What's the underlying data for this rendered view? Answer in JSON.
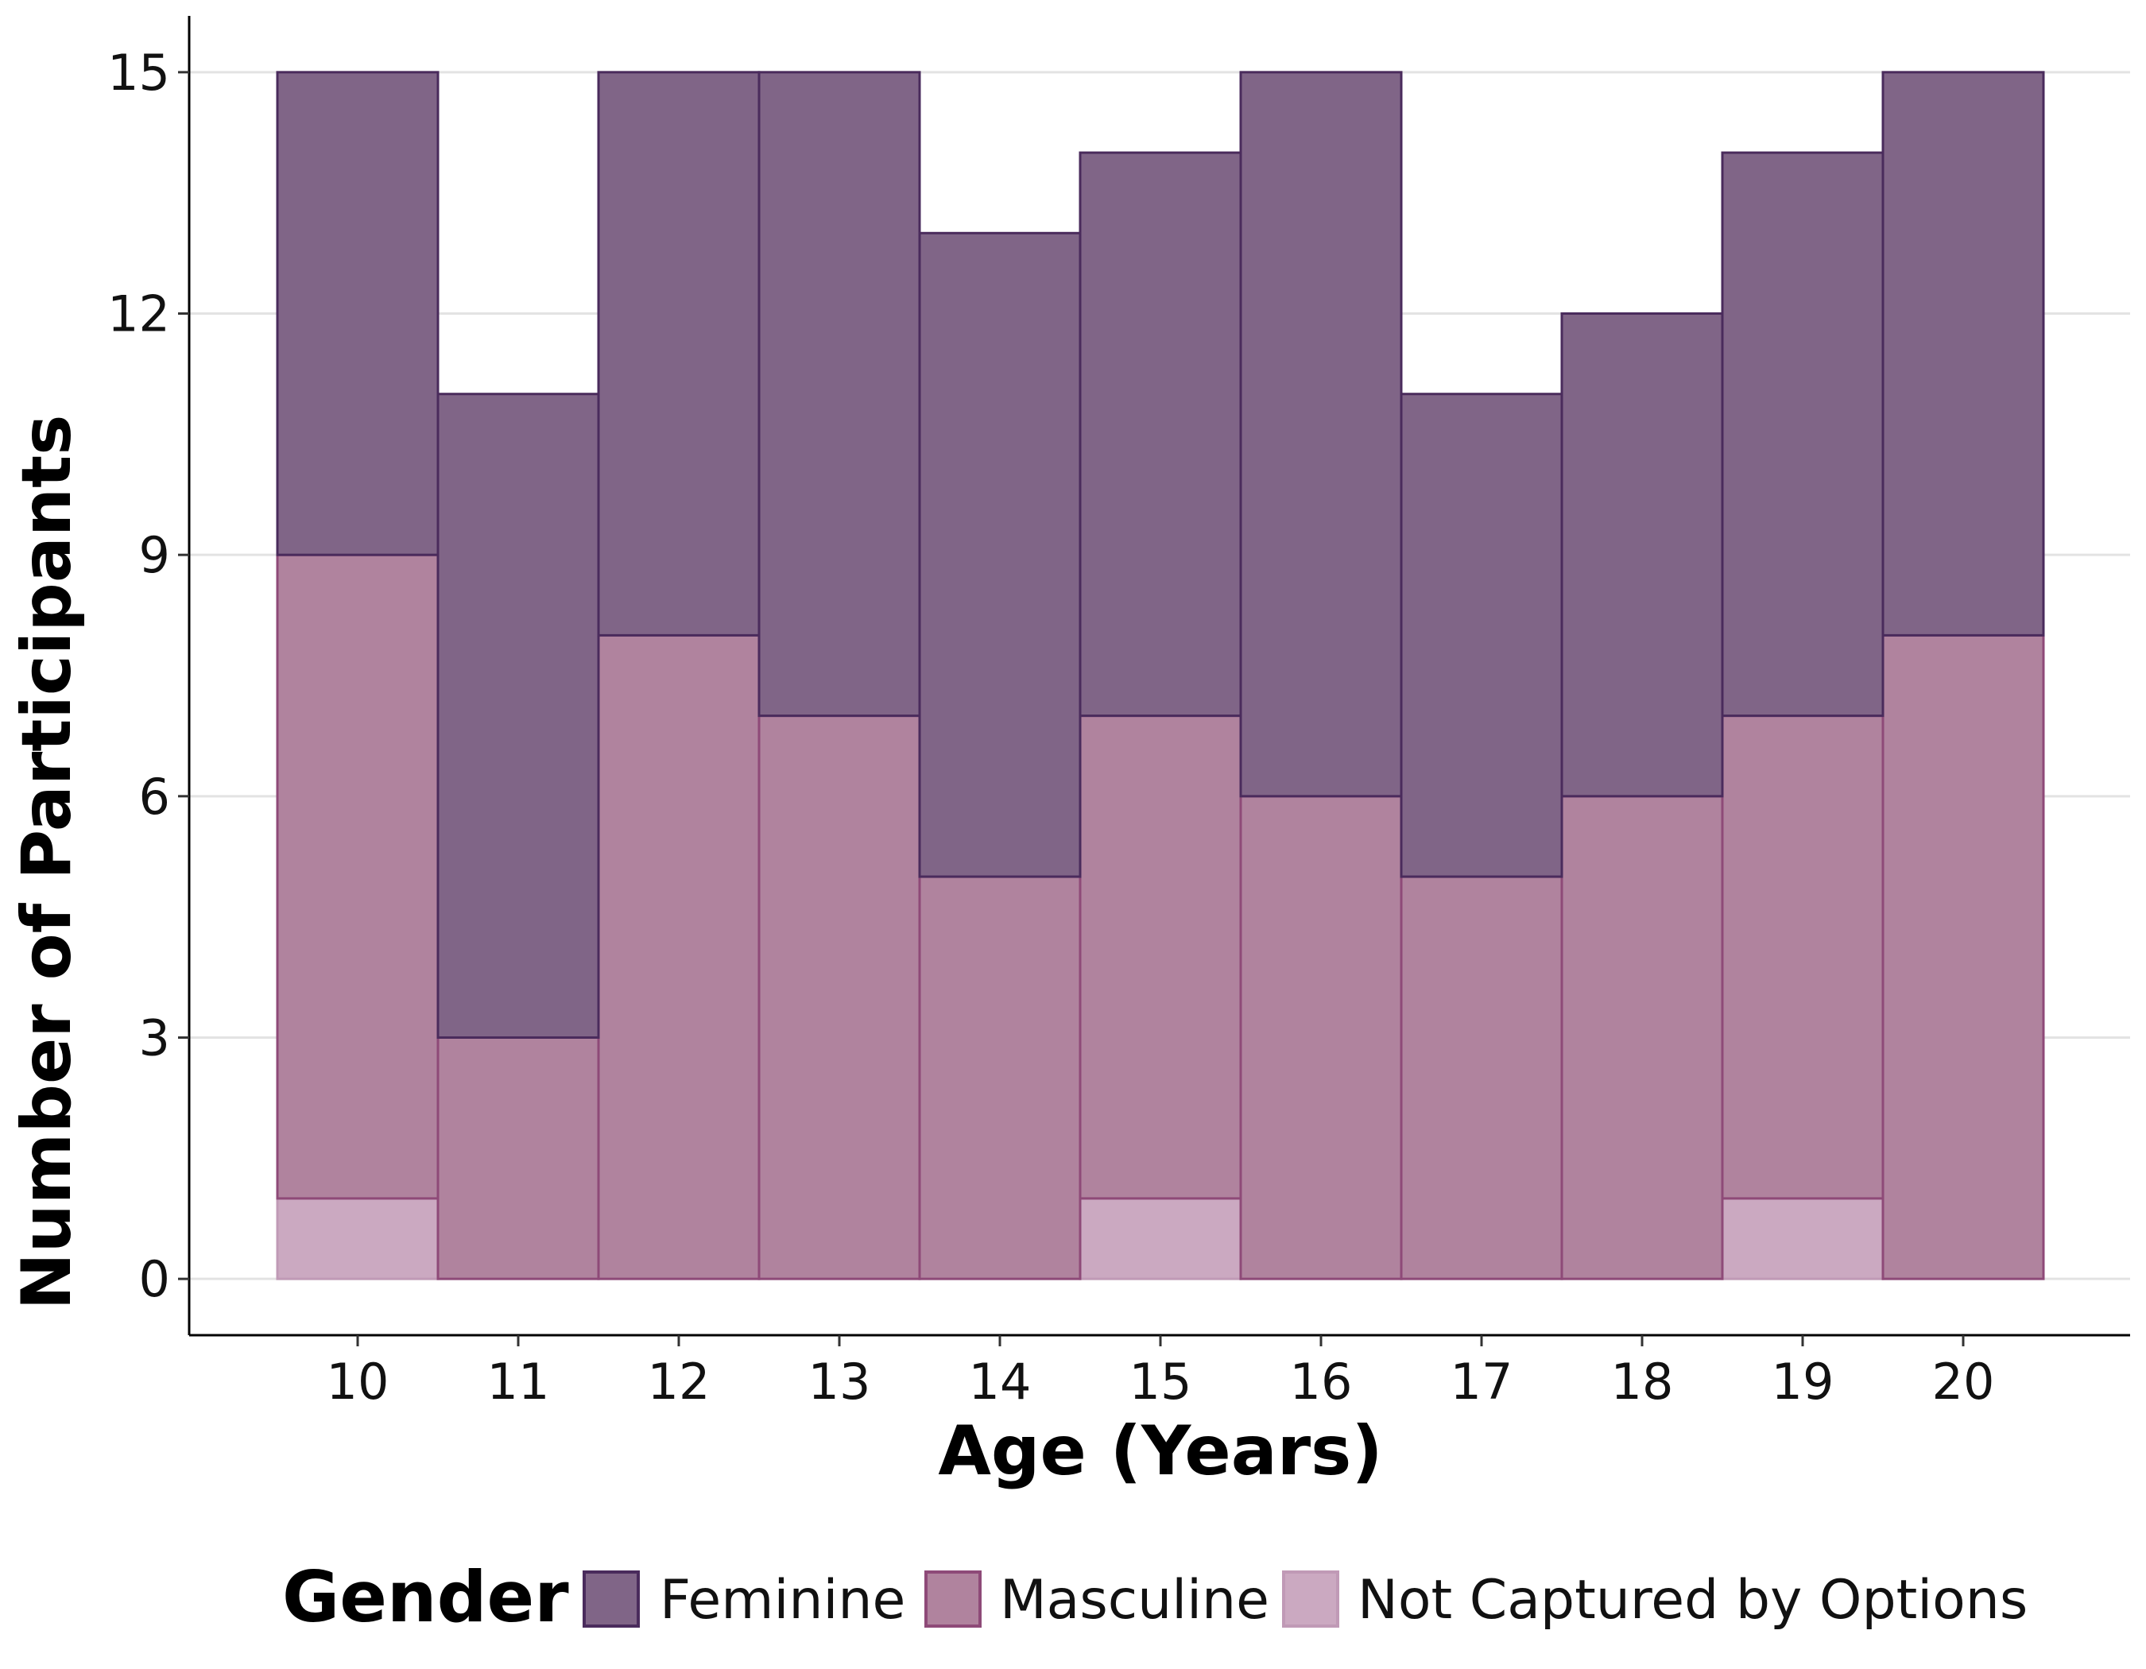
{
  "chart_data": {
    "type": "bar",
    "stacked": true,
    "xlabel": "Age (Years)",
    "ylabel": "Number of Participants",
    "categories": [
      "10",
      "11",
      "12",
      "13",
      "14",
      "15",
      "16",
      "17",
      "18",
      "19",
      "20"
    ],
    "ylim": [
      -0.7,
      15.7
    ],
    "yticks": [
      0,
      3,
      6,
      9,
      12,
      15
    ],
    "grid": "horizontal",
    "legend_position": "bottom",
    "legend_title": "Gender",
    "series": [
      {
        "name": "Not Captured by Options",
        "values": [
          1,
          0,
          0,
          0,
          0,
          1,
          0,
          0,
          0,
          1,
          0
        ],
        "fill": "#cba9c1",
        "stroke": "#c09ab6"
      },
      {
        "name": "Masculine",
        "values": [
          8,
          3,
          8,
          7,
          5,
          6,
          6,
          5,
          6,
          6,
          8
        ],
        "fill": "#b0839e",
        "stroke": "#8e4a78"
      },
      {
        "name": "Feminine",
        "values": [
          6,
          8,
          7,
          8,
          8,
          7,
          9,
          6,
          6,
          7,
          7
        ],
        "fill": "#806587",
        "stroke": "#4a2b5c"
      }
    ],
    "legend_order": [
      "Feminine",
      "Masculine",
      "Not Captured by Options"
    ]
  }
}
